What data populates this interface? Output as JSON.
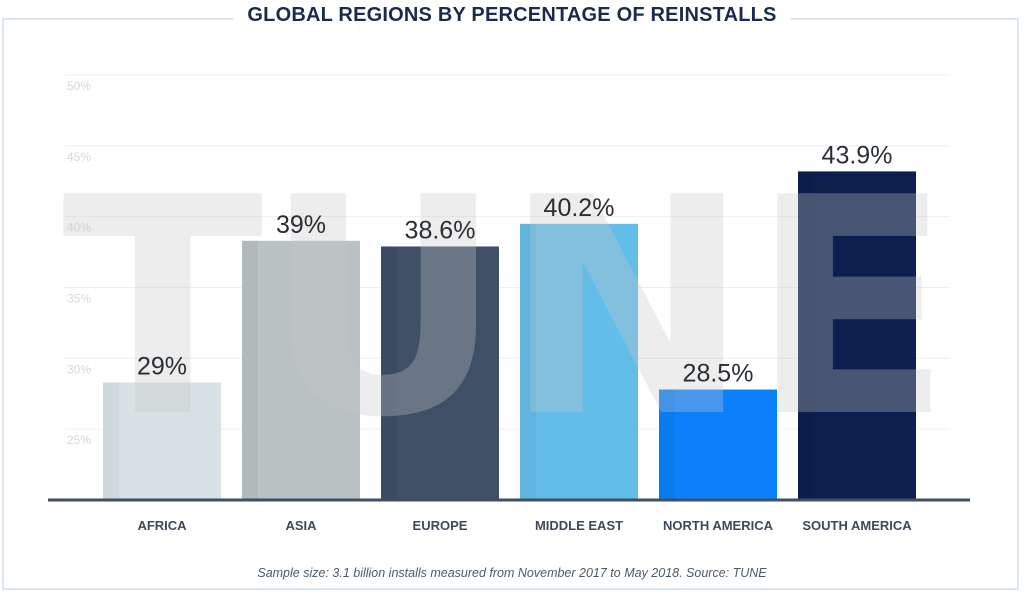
{
  "chart_data": {
    "type": "bar",
    "title": "GLOBAL REGIONS BY PERCENTAGE OF REINSTALLS",
    "categories": [
      "AFRICA",
      "ASIA",
      "EUROPE",
      "MIDDLE EAST",
      "NORTH AMERICA",
      "SOUTH AMERICA"
    ],
    "values": [
      29,
      39,
      38.6,
      40.2,
      28.5,
      43.9
    ],
    "value_labels": [
      "29%",
      "39%",
      "38.6%",
      "40.2%",
      "28.5%",
      "43.9%"
    ],
    "colors": [
      "#d6e2e3",
      "#b8c2c3",
      "#3e4f66",
      "#62bde8",
      "#0a80fb",
      "#0c1f4e"
    ],
    "yticks": [
      25,
      30,
      35,
      40,
      45,
      50
    ],
    "ytick_labels": [
      "25%",
      "30%",
      "35%",
      "40%",
      "45%",
      "50%"
    ],
    "ylim": [
      20.7,
      50
    ],
    "xlabel": "",
    "ylabel": "",
    "grid": true,
    "watermark": "TUNE",
    "caption": "Sample size: 3.1 billion installs measured from November 2017 to May 2018. Source: TUNE"
  }
}
